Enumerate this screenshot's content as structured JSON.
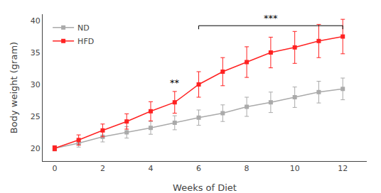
{
  "chart_data": {
    "type": "line",
    "x": [
      0,
      1,
      2,
      3,
      4,
      5,
      6,
      7,
      8,
      9,
      10,
      11,
      12
    ],
    "series": [
      {
        "name": "ND",
        "color": "#AAAAAA",
        "marker": "square",
        "line_style": "solid",
        "values": [
          20.0,
          20.8,
          21.8,
          22.5,
          23.2,
          24.0,
          24.8,
          25.5,
          26.5,
          27.2,
          28.0,
          28.8,
          29.3
        ],
        "error": [
          0.4,
          0.6,
          0.8,
          0.9,
          1.0,
          1.1,
          1.2,
          1.3,
          1.5,
          1.6,
          1.6,
          1.7,
          1.7
        ]
      },
      {
        "name": "HFD",
        "color": "#FF2222",
        "marker": "square",
        "line_style": "solid",
        "values": [
          20.0,
          21.3,
          22.8,
          24.2,
          25.8,
          27.2,
          30.0,
          32.0,
          33.5,
          35.0,
          35.8,
          36.8,
          37.5
        ],
        "error": [
          0.4,
          0.8,
          1.0,
          1.2,
          1.5,
          1.7,
          2.0,
          2.2,
          2.4,
          2.4,
          2.5,
          2.6,
          2.7
        ]
      }
    ],
    "x_label": "Weeks of Diet",
    "y_label": "Body weight (gram)",
    "xlim": [
      -0.5,
      13
    ],
    "ylim": [
      18,
      41
    ],
    "xticks": [
      0,
      2,
      4,
      6,
      8,
      10,
      12
    ],
    "yticks": [
      20,
      25,
      30,
      35,
      40
    ],
    "annotations": [
      {
        "text": "**",
        "x": 5,
        "y": 29.2
      },
      {
        "text": "***",
        "x": 9,
        "y": 39.2,
        "bracket": [
          6,
          12
        ]
      }
    ],
    "legend": "upper left",
    "grid": false
  }
}
